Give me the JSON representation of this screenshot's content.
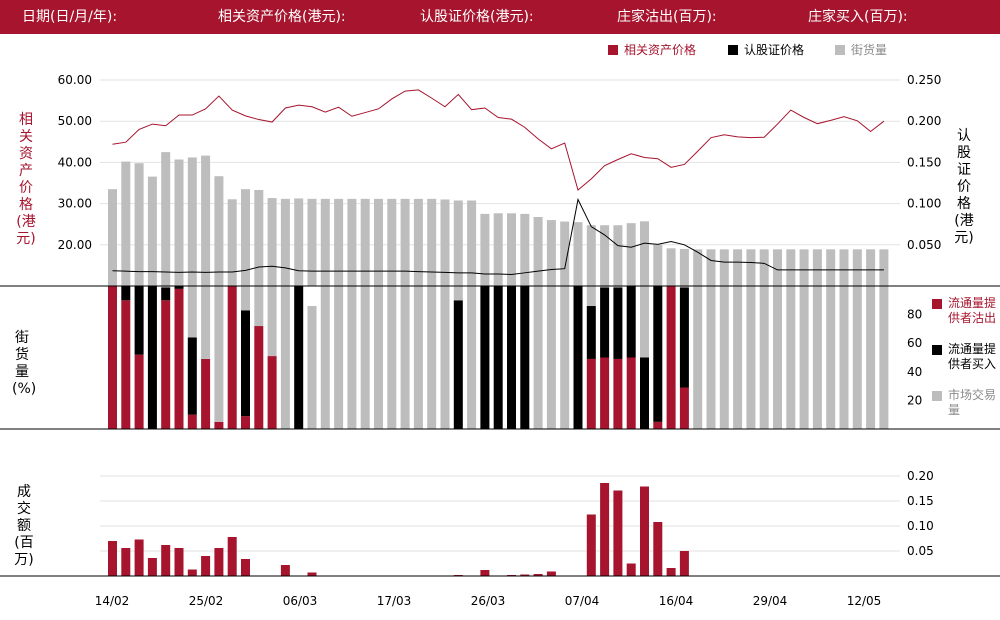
{
  "header": {
    "date_label": "日期(日/月/年):",
    "underlying_label": "相关资产价格(港元):",
    "warrant_label": "认股证价格(港元):",
    "mm_sell_label": "庄家沽出(百万):",
    "mm_buy_label": "庄家买入(百万):"
  },
  "legend_top": [
    {
      "label": "相关资产价格",
      "color": "#a6142e"
    },
    {
      "label": "认股证价格",
      "color": "#000000"
    },
    {
      "label": "街货量",
      "color": "#bdbdbd"
    }
  ],
  "legend_right": [
    {
      "label": "流通量提供者沽出",
      "color": "#a6142e"
    },
    {
      "label": "流通量提供者买入",
      "color": "#000000"
    },
    {
      "label": "市场交易量",
      "color": "#bdbdbd"
    }
  ],
  "axis_labels": {
    "left_top": "相关资产价格(港元)",
    "right_top": "认股证价格(港元)",
    "left_mid": "街货量(%)",
    "left_bottom": "成交额(百万)"
  },
  "chart_data": [
    {
      "type": "line",
      "x_labels": [
        "14/02",
        "25/02",
        "06/03",
        "17/03",
        "26/03",
        "07/04",
        "16/04",
        "29/04",
        "12/05"
      ],
      "left_axis": {
        "ticks": [
          "20.00",
          "30.00",
          "40.00",
          "50.00",
          "60.00"
        ],
        "ylim": [
          10,
          60
        ]
      },
      "right_axis": {
        "ticks": [
          "0.050",
          "0.100",
          "0.150",
          "0.200",
          "0.250"
        ],
        "ylim": [
          0,
          0.25
        ]
      },
      "grid": true,
      "series": [
        {
          "name": "相关资产价格",
          "axis": "left",
          "color": "#a6142e",
          "values": [
            44.4,
            44.9,
            48.0,
            49.3,
            48.9,
            51.5,
            51.5,
            53.0,
            56.1,
            52.7,
            51.3,
            50.4,
            49.8,
            53.2,
            53.9,
            53.5,
            52.2,
            53.4,
            51.2,
            52.1,
            53.0,
            55.4,
            57.3,
            57.6,
            55.6,
            53.5,
            56.5,
            52.8,
            53.2,
            50.9,
            50.5,
            48.5,
            45.7,
            43.3,
            44.7,
            33.3,
            36.0,
            39.2,
            40.7,
            42.1,
            41.2,
            40.9,
            38.8,
            39.5,
            42.7,
            46.0,
            46.7,
            46.2,
            46.0,
            46.1,
            49.3,
            52.7,
            50.9,
            49.4,
            50.2,
            51.1,
            50.1,
            47.5,
            50.0
          ]
        },
        {
          "name": "认股证价格",
          "axis": "right",
          "color": "#000000",
          "values": [
            0.0185,
            0.018,
            0.0175,
            0.0175,
            0.017,
            0.0165,
            0.017,
            0.0165,
            0.017,
            0.017,
            0.019,
            0.023,
            0.024,
            0.022,
            0.0185,
            0.018,
            0.018,
            0.018,
            0.018,
            0.018,
            0.018,
            0.018,
            0.018,
            0.0175,
            0.017,
            0.0165,
            0.016,
            0.016,
            0.0145,
            0.0145,
            0.014,
            0.016,
            0.018,
            0.02,
            0.021,
            0.105,
            0.072,
            0.062,
            0.049,
            0.047,
            0.052,
            0.0505,
            0.054,
            0.05,
            0.041,
            0.031,
            0.029,
            0.029,
            0.0285,
            0.0275,
            0.0195,
            0.0195,
            0.0195,
            0.0195,
            0.0195,
            0.0195,
            0.0195,
            0.0195,
            0.0195
          ]
        }
      ]
    },
    {
      "type": "bar",
      "name": "街货量",
      "color": "#bdbdbd",
      "values": [
        47.0,
        60.4,
        59.6,
        53.1,
        65.0,
        61.4,
        62.4,
        63.3,
        53.3,
        42.1,
        47.0,
        46.6,
        42.7,
        42.3,
        42.5,
        42.3,
        42.3,
        42.3,
        42.3,
        42.3,
        42.3,
        42.3,
        42.3,
        42.3,
        42.3,
        42.0,
        41.5,
        41.5,
        35.0,
        35.3,
        35.3,
        35.0,
        33.5,
        32.0,
        31.3,
        31.0,
        29.5,
        29.5,
        29.5,
        30.5,
        31.4,
        20.0,
        18.3,
        18.0,
        17.8,
        17.8,
        17.8,
        17.8,
        17.8,
        17.8,
        17.8,
        17.8,
        17.8,
        17.8,
        17.8,
        17.8,
        17.8,
        17.8,
        17.8
      ]
    },
    {
      "type": "bar",
      "stacked_percent": true,
      "right_axis": {
        "ticks": [
          "20",
          "40",
          "60",
          "80"
        ],
        "ylim": [
          0,
          100
        ]
      },
      "series": [
        {
          "name": "流通量提供者沽出",
          "color": "#a6142e",
          "values": [
            100,
            90,
            52,
            0,
            90,
            98,
            10,
            49,
            5,
            100,
            9,
            72,
            51,
            0,
            0,
            0,
            0,
            0,
            0,
            0,
            0,
            0,
            0,
            0,
            0,
            0,
            0,
            0,
            0,
            0,
            0,
            0,
            0,
            0,
            0,
            0,
            49,
            50,
            49,
            50,
            0,
            5,
            100,
            29,
            0,
            0,
            0,
            0,
            0,
            0,
            0,
            0,
            0,
            0,
            0,
            0,
            0,
            0,
            0
          ]
        },
        {
          "name": "流通量提供者买入",
          "color": "#000000",
          "values": [
            0,
            10,
            48,
            100,
            9,
            2,
            54,
            0,
            0,
            0,
            74,
            0,
            0,
            0,
            100,
            0,
            0,
            0,
            0,
            0,
            0,
            0,
            0,
            0,
            0,
            0,
            90,
            0,
            100,
            100,
            100,
            100,
            0,
            0,
            0,
            100,
            37,
            49,
            50,
            50,
            50,
            95,
            0,
            70,
            0,
            0,
            0,
            0,
            0,
            0,
            0,
            0,
            0,
            0,
            0,
            0,
            0,
            0,
            0
          ]
        },
        {
          "name": "市场交易量",
          "color": "#bdbdbd",
          "values": [
            0,
            0,
            0,
            0,
            1,
            0,
            36,
            51,
            95,
            0,
            17,
            28,
            49,
            100,
            0,
            86,
            100,
            100,
            100,
            100,
            100,
            100,
            100,
            100,
            100,
            100,
            10,
            100,
            0,
            0,
            0,
            0,
            100,
            100,
            100,
            0,
            14,
            1,
            1,
            0,
            50,
            0,
            0,
            1,
            100,
            100,
            100,
            100,
            100,
            100,
            100,
            100,
            100,
            100,
            100,
            100,
            100,
            100,
            100
          ]
        }
      ]
    },
    {
      "type": "bar",
      "name": "成交额",
      "color": "#a6142e",
      "right_axis": {
        "ticks": [
          "0.05",
          "0.10",
          "0.15",
          "0.20"
        ],
        "ylim": [
          0,
          0.25
        ]
      },
      "values": [
        0.07,
        0.056,
        0.073,
        0.036,
        0.062,
        0.056,
        0.013,
        0.04,
        0.056,
        0.078,
        0.034,
        0,
        0,
        0.022,
        0,
        0.007,
        0,
        0,
        0,
        0,
        0,
        0,
        0,
        0,
        0,
        0,
        0.002,
        0,
        0.012,
        0,
        0.002,
        0.003,
        0.004,
        0.009,
        0,
        0,
        0.123,
        0.186,
        0.171,
        0.025,
        0.179,
        0.108,
        0.016,
        0.05,
        0,
        0,
        0,
        0,
        0,
        0,
        0,
        0,
        0,
        0,
        0,
        0,
        0,
        0,
        0
      ]
    }
  ]
}
